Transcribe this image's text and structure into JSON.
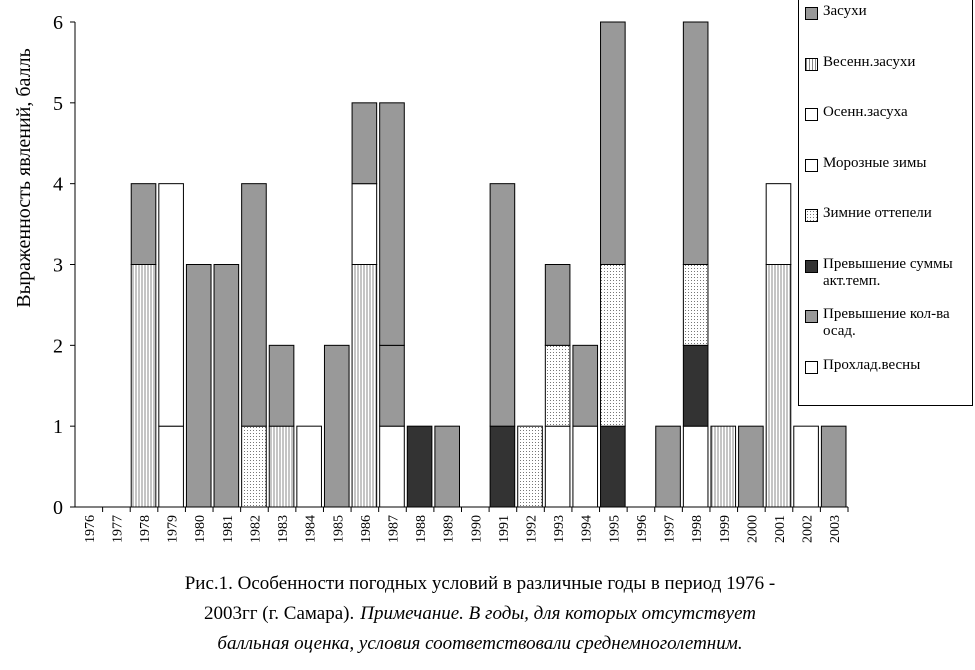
{
  "chart_data": {
    "type": "stacked-bar",
    "ylabel": "Выраженность явлений, балль",
    "categories": [
      "1976",
      "1977",
      "1978",
      "1979",
      "1980",
      "1981",
      "1982",
      "1983",
      "1984",
      "1985",
      "1986",
      "1987",
      "1988",
      "1989",
      "1990",
      "1991",
      "1992",
      "1993",
      "1994",
      "1995",
      "1996",
      "1997",
      "1998",
      "1999",
      "2000",
      "2001",
      "2002",
      "2003"
    ],
    "ylim": [
      0,
      6
    ],
    "yticks": [
      0,
      1,
      2,
      3,
      4,
      5,
      6
    ],
    "series": [
      {
        "name": "Засухи",
        "color": "#999999",
        "values": [
          0,
          0,
          1,
          0,
          0,
          0,
          0,
          0,
          0,
          0,
          1,
          3,
          0,
          0,
          0,
          3,
          0,
          0,
          0,
          3,
          0,
          0,
          3,
          0,
          0,
          0,
          0,
          0
        ]
      },
      {
        "name": "Весенн.засухи",
        "color": "#ffffff",
        "pattern": "vertical",
        "values": [
          0,
          0,
          3,
          0,
          0,
          0,
          0,
          1,
          0,
          0,
          3,
          0,
          0,
          0,
          0,
          0,
          0,
          0,
          0,
          0,
          0,
          0,
          0,
          1,
          0,
          3,
          0,
          0
        ]
      },
      {
        "name": "Осенн.засуха",
        "color": "#ffffff",
        "values": [
          0,
          0,
          0,
          3,
          0,
          0,
          0,
          0,
          0,
          0,
          1,
          0,
          0,
          0,
          0,
          0,
          0,
          0,
          0,
          0,
          0,
          0,
          0,
          0,
          0,
          1,
          0,
          0
        ]
      },
      {
        "name": "Морозные зимы",
        "color": "#ffffff",
        "values": [
          0,
          0,
          0,
          1,
          0,
          0,
          0,
          0,
          1,
          0,
          0,
          1,
          0,
          0,
          0,
          0,
          0,
          1,
          1,
          0,
          0,
          0,
          1,
          0,
          0,
          0,
          0,
          0
        ]
      },
      {
        "name": "Зимние оттепели",
        "color": "#ffffff",
        "pattern": "dots",
        "values": [
          0,
          0,
          0,
          0,
          0,
          0,
          1,
          0,
          0,
          0,
          0,
          0,
          0,
          0,
          0,
          0,
          1,
          1,
          0,
          2,
          0,
          0,
          1,
          0,
          0,
          0,
          0,
          0
        ]
      },
      {
        "name": "Превышение суммы акт.темп.",
        "color": "#333333",
        "values": [
          0,
          0,
          0,
          0,
          0,
          0,
          0,
          0,
          0,
          0,
          0,
          0,
          1,
          0,
          0,
          1,
          0,
          0,
          0,
          1,
          0,
          0,
          1,
          0,
          0,
          0,
          0,
          0
        ]
      },
      {
        "name": "Превышение кол-ва осад.",
        "color": "#999999",
        "values": [
          0,
          0,
          0,
          0,
          3,
          3,
          3,
          1,
          0,
          2,
          0,
          1,
          0,
          1,
          0,
          0,
          0,
          1,
          1,
          0,
          0,
          1,
          0,
          0,
          1,
          0,
          0,
          1
        ]
      },
      {
        "name": "Прохлад.весны",
        "color": "#ffffff",
        "values": [
          0,
          0,
          0,
          0,
          0,
          0,
          0,
          0,
          0,
          0,
          0,
          0,
          0,
          0,
          0,
          0,
          0,
          0,
          0,
          0,
          0,
          0,
          0,
          0,
          0,
          0,
          1,
          0
        ]
      }
    ],
    "stack_order": [
      7,
      3,
      5,
      1,
      4,
      6,
      2,
      0
    ],
    "caption": [
      "Рис.1.  Особенности погодных условий в различные годы в период 1976 -",
      "2003гг (г. Самара).",
      "Примечание.  В годы, для которых отсутствует",
      "балльная оценка, условия соответствовали среднемноголетним."
    ]
  }
}
